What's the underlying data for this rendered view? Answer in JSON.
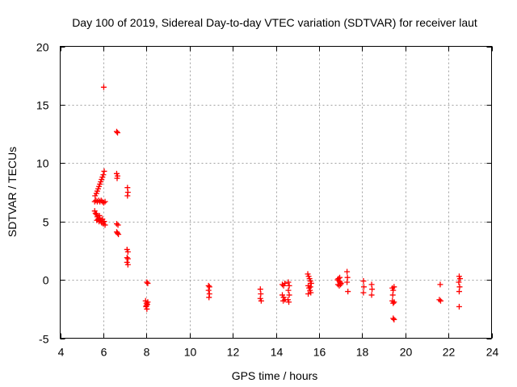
{
  "chart_data": {
    "type": "scatter",
    "title": "Day 100 of 2019, Sidereal Day-to-day VTEC variation (SDTVAR) for receiver laut",
    "xlabel": "GPS time / hours",
    "ylabel": "SDTVAR / TECUs",
    "xlim": [
      4,
      24
    ],
    "ylim": [
      -5,
      20
    ],
    "xticks": [
      4,
      6,
      8,
      10,
      12,
      14,
      16,
      18,
      20,
      22,
      24
    ],
    "yticks": [
      -5,
      0,
      5,
      10,
      15,
      20
    ],
    "grid": true,
    "marker": "+",
    "color": "#ff0000",
    "series": [
      {
        "name": "SDTVAR",
        "points": [
          [
            6.02,
            16.5
          ],
          [
            5.62,
            7.2
          ],
          [
            5.68,
            7.4
          ],
          [
            5.72,
            7.6
          ],
          [
            5.76,
            7.8
          ],
          [
            5.8,
            8.0
          ],
          [
            5.84,
            8.2
          ],
          [
            5.88,
            8.4
          ],
          [
            5.92,
            8.6
          ],
          [
            5.96,
            8.8
          ],
          [
            6.0,
            9.0
          ],
          [
            6.04,
            9.3
          ],
          [
            5.6,
            6.7
          ],
          [
            5.66,
            6.8
          ],
          [
            5.72,
            6.7
          ],
          [
            5.78,
            6.8
          ],
          [
            5.84,
            6.7
          ],
          [
            5.9,
            6.8
          ],
          [
            5.96,
            6.7
          ],
          [
            6.02,
            6.6
          ],
          [
            6.08,
            6.7
          ],
          [
            5.6,
            5.9
          ],
          [
            5.64,
            5.7
          ],
          [
            5.68,
            5.6
          ],
          [
            5.72,
            5.4
          ],
          [
            5.76,
            5.2
          ],
          [
            5.8,
            5.0
          ],
          [
            5.84,
            5.3
          ],
          [
            5.88,
            5.1
          ],
          [
            5.92,
            4.9
          ],
          [
            5.96,
            5.2
          ],
          [
            6.0,
            4.8
          ],
          [
            6.04,
            5.0
          ],
          [
            6.08,
            4.7
          ],
          [
            5.7,
            5.1
          ],
          [
            5.82,
            5.5
          ],
          [
            6.62,
            12.7
          ],
          [
            6.66,
            12.6
          ],
          [
            6.62,
            9.1
          ],
          [
            6.66,
            8.9
          ],
          [
            6.64,
            8.7
          ],
          [
            6.62,
            4.8
          ],
          [
            6.68,
            4.7
          ],
          [
            6.62,
            4.1
          ],
          [
            6.66,
            4.0
          ],
          [
            6.7,
            3.9
          ],
          [
            7.12,
            7.9
          ],
          [
            7.14,
            7.5
          ],
          [
            7.12,
            7.2
          ],
          [
            7.1,
            2.6
          ],
          [
            7.14,
            2.4
          ],
          [
            7.1,
            1.9
          ],
          [
            7.14,
            1.8
          ],
          [
            7.1,
            1.5
          ],
          [
            7.14,
            1.3
          ],
          [
            8.02,
            -0.2
          ],
          [
            8.06,
            -0.3
          ],
          [
            7.96,
            -1.8
          ],
          [
            8.0,
            -2.0
          ],
          [
            8.04,
            -2.1
          ],
          [
            7.98,
            -2.3
          ],
          [
            8.02,
            -2.5
          ],
          [
            8.06,
            -1.9
          ],
          [
            8.0,
            -2.2
          ],
          [
            10.88,
            -0.5
          ],
          [
            10.92,
            -0.6
          ],
          [
            10.88,
            -0.9
          ],
          [
            10.92,
            -1.2
          ],
          [
            10.9,
            -1.5
          ],
          [
            13.28,
            -0.8
          ],
          [
            13.3,
            -1.2
          ],
          [
            13.28,
            -1.6
          ],
          [
            13.32,
            -1.8
          ],
          [
            14.3,
            -0.4
          ],
          [
            14.36,
            -0.5
          ],
          [
            14.42,
            -0.3
          ],
          [
            14.3,
            -1.3
          ],
          [
            14.36,
            -1.5
          ],
          [
            14.42,
            -1.7
          ],
          [
            14.34,
            -1.8
          ],
          [
            14.58,
            -0.2
          ],
          [
            14.62,
            -0.5
          ],
          [
            14.58,
            -0.9
          ],
          [
            14.62,
            -1.3
          ],
          [
            14.56,
            -1.7
          ],
          [
            14.6,
            -1.9
          ],
          [
            15.48,
            0.5
          ],
          [
            15.52,
            0.3
          ],
          [
            15.56,
            0.1
          ],
          [
            15.6,
            -0.1
          ],
          [
            15.64,
            -0.3
          ],
          [
            15.5,
            -0.5
          ],
          [
            15.54,
            -0.7
          ],
          [
            15.58,
            -0.9
          ],
          [
            15.62,
            -1.1
          ],
          [
            15.5,
            -1.2
          ],
          [
            15.6,
            -0.6
          ],
          [
            16.86,
            0.0
          ],
          [
            16.9,
            0.1
          ],
          [
            16.94,
            -0.1
          ],
          [
            16.98,
            -0.2
          ],
          [
            17.02,
            -0.3
          ],
          [
            16.88,
            -0.4
          ],
          [
            16.94,
            -0.5
          ],
          [
            17.0,
            -0.4
          ],
          [
            16.96,
            0.2
          ],
          [
            17.3,
            0.7
          ],
          [
            17.32,
            0.2
          ],
          [
            17.3,
            -0.2
          ],
          [
            17.34,
            -1.0
          ],
          [
            18.06,
            -0.1
          ],
          [
            18.08,
            -0.6
          ],
          [
            18.06,
            -1.1
          ],
          [
            18.44,
            -0.4
          ],
          [
            18.46,
            -0.8
          ],
          [
            18.44,
            -1.3
          ],
          [
            19.4,
            -0.7
          ],
          [
            19.44,
            -0.9
          ],
          [
            19.48,
            -0.6
          ],
          [
            19.42,
            -1.3
          ],
          [
            19.4,
            -1.8
          ],
          [
            19.44,
            -2.0
          ],
          [
            19.48,
            -1.9
          ],
          [
            19.44,
            -3.3
          ],
          [
            19.48,
            -3.4
          ],
          [
            21.62,
            -0.4
          ],
          [
            21.58,
            -1.7
          ],
          [
            21.64,
            -1.8
          ],
          [
            22.5,
            0.3
          ],
          [
            22.54,
            0.1
          ],
          [
            22.48,
            -0.2
          ],
          [
            22.52,
            -0.6
          ],
          [
            22.5,
            -1.0
          ],
          [
            22.5,
            -2.3
          ]
        ]
      }
    ]
  }
}
